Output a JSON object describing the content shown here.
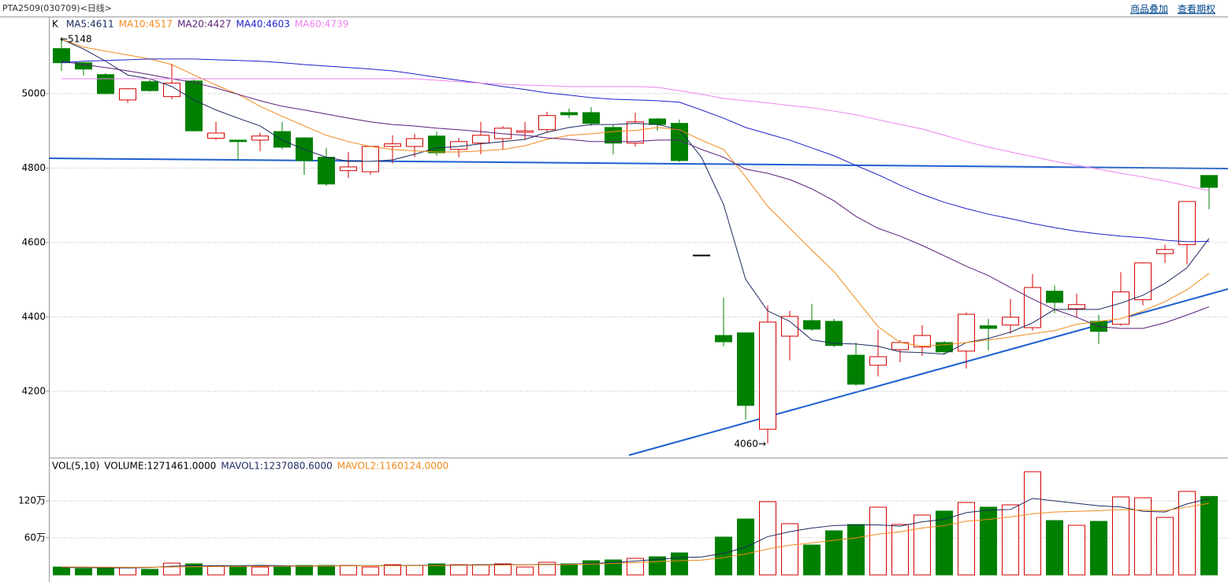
{
  "toolbar": {
    "links": [
      "商品叠加",
      "查看期权"
    ]
  },
  "chart_data": [
    {
      "type": "candlestick",
      "title": "PTA2509(030709)<日线>",
      "legend_label": "K",
      "up_color": "#d40000",
      "down_color": "#008000",
      "open": [
        5121,
        5083,
        5051,
        4983,
        5032,
        4992,
        5034,
        4880,
        4875,
        4875,
        4898,
        4881,
        4829,
        4793,
        4790,
        4858,
        4858,
        4886,
        4850,
        4867,
        4879,
        4896,
        4903,
        4949,
        4949,
        4909,
        4867,
        4932,
        4920,
        4566,
        4350,
        4357,
        4098,
        4348,
        4390,
        4388,
        4297,
        4270,
        4312,
        4319,
        4331,
        4308,
        4376,
        4378,
        4371,
        4469,
        4422,
        4388,
        4380,
        4446,
        4570,
        4594,
        4780
      ],
      "high": [
        5148,
        5085,
        5055,
        5015,
        5040,
        5080,
        5038,
        4924,
        4876,
        4895,
        4924,
        4883,
        4854,
        4843,
        4860,
        4888,
        4892,
        4898,
        4881,
        4924,
        4913,
        4924,
        4951,
        4960,
        4964,
        4917,
        4949,
        4934,
        4930,
        4566,
        4452,
        4357,
        4431,
        4416,
        4435,
        4395,
        4331,
        4365,
        4338,
        4378,
        4335,
        4412,
        4395,
        4448,
        4515,
        4484,
        4462,
        4405,
        4520,
        4547,
        4594,
        4710,
        4780
      ],
      "low": [
        5061,
        5049,
        4998,
        4975,
        5005,
        4985,
        4898,
        4875,
        4820,
        4845,
        4850,
        4782,
        4752,
        4773,
        4782,
        4812,
        4829,
        4833,
        4829,
        4837,
        4850,
        4875,
        4896,
        4934,
        4913,
        4837,
        4858,
        4900,
        4816,
        4566,
        4321,
        4124,
        4060,
        4283,
        4363,
        4319,
        4215,
        4240,
        4278,
        4295,
        4300,
        4261,
        4310,
        4355,
        4363,
        4410,
        4399,
        4327,
        4376,
        4431,
        4545,
        4541,
        4689
      ],
      "close": [
        5083,
        5066,
        5000,
        5013,
        5008,
        5028,
        4900,
        4894,
        4871,
        4886,
        4856,
        4820,
        4757,
        4803,
        4858,
        4865,
        4879,
        4841,
        4871,
        4888,
        4907,
        4900,
        4941,
        4943,
        4920,
        4867,
        4924,
        4917,
        4820,
        4566,
        4333,
        4162,
        4386,
        4401,
        4367,
        4323,
        4219,
        4293,
        4331,
        4350,
        4306,
        4407,
        4369,
        4399,
        4479,
        4439,
        4433,
        4361,
        4467,
        4545,
        4581,
        4710,
        4748
      ],
      "series": [
        {
          "name": "MA5:4611",
          "color": "#1c2a5e",
          "values": [
            5146,
            5120,
            5087,
            5050,
            5040,
            5019,
            4983,
            4956,
            4934,
            4913,
            4875,
            4850,
            4829,
            4818,
            4818,
            4822,
            4837,
            4854,
            4858,
            4865,
            4871,
            4877,
            4896,
            4909,
            4917,
            4917,
            4920,
            4917,
            4903,
            4829,
            4702,
            4501,
            4416,
            4388,
            4338,
            4329,
            4327,
            4321,
            4306,
            4304,
            4300,
            4331,
            4342,
            4359,
            4384,
            4420,
            4420,
            4420,
            4437,
            4458,
            4490,
            4532,
            4611
          ]
        },
        {
          "name": "MA10:4517",
          "color": "#f08a1c",
          "values": [
            5146,
            5125,
            5114,
            5104,
            5093,
            5078,
            5050,
            5023,
            4998,
            4966,
            4939,
            4913,
            4888,
            4871,
            4858,
            4850,
            4846,
            4843,
            4843,
            4846,
            4850,
            4860,
            4877,
            4888,
            4892,
            4898,
            4901,
            4909,
            4903,
            4875,
            4850,
            4776,
            4697,
            4638,
            4579,
            4522,
            4448,
            4374,
            4331,
            4321,
            4325,
            4331,
            4338,
            4346,
            4355,
            4363,
            4380,
            4388,
            4395,
            4416,
            4441,
            4473,
            4517
          ]
        },
        {
          "name": "MA20:4427",
          "color": "#5a1e78",
          "values": [
            5087,
            5078,
            5070,
            5061,
            5051,
            5040,
            5030,
            5015,
            4998,
            4981,
            4966,
            4956,
            4945,
            4934,
            4924,
            4917,
            4913,
            4907,
            4903,
            4898,
            4892,
            4888,
            4881,
            4877,
            4871,
            4871,
            4871,
            4875,
            4875,
            4850,
            4829,
            4797,
            4786,
            4769,
            4744,
            4712,
            4670,
            4638,
            4617,
            4592,
            4564,
            4536,
            4511,
            4479,
            4448,
            4420,
            4399,
            4374,
            4369,
            4369,
            4384,
            4405,
            4427
          ]
        },
        {
          "name": "MA40:4603",
          "color": "#2020c8",
          "values": [
            5083,
            5087,
            5089,
            5091,
            5093,
            5093,
            5093,
            5091,
            5089,
            5087,
            5083,
            5078,
            5074,
            5070,
            5066,
            5061,
            5053,
            5044,
            5036,
            5028,
            5019,
            5011,
            5002,
            4996,
            4989,
            4985,
            4983,
            4981,
            4977,
            4956,
            4934,
            4909,
            4892,
            4875,
            4854,
            4833,
            4807,
            4782,
            4754,
            4729,
            4708,
            4691,
            4676,
            4664,
            4651,
            4640,
            4630,
            4623,
            4617,
            4613,
            4606,
            4602,
            4603
          ]
        },
        {
          "name": "MA60:4739",
          "color": "#ee82ee",
          "values": [
            5040,
            5040,
            5040,
            5040,
            5040,
            5040,
            5040,
            5040,
            5040,
            5040,
            5040,
            5040,
            5040,
            5040,
            5040,
            5040,
            5040,
            5036,
            5032,
            5028,
            5025,
            5023,
            5021,
            5019,
            5019,
            5019,
            5019,
            5017,
            5008,
            4998,
            4987,
            4981,
            4975,
            4968,
            4962,
            4953,
            4943,
            4930,
            4917,
            4905,
            4888,
            4871,
            4856,
            4843,
            4831,
            4818,
            4807,
            4797,
            4786,
            4776,
            4765,
            4752,
            4739
          ]
        }
      ],
      "annotations": [
        "←5148",
        "4060→"
      ],
      "ylim": [
        4024,
        5205
      ],
      "yticks": [
        4200,
        4400,
        4600,
        4800,
        5000
      ],
      "grid": true
    },
    {
      "type": "bar",
      "title": "VOL(5,10)",
      "series": [
        {
          "name": "VOLUME:1271461.0000",
          "color": "#000000",
          "values": [
            128000,
            102000,
            115000,
            115000,
            90000,
            191000,
            179000,
            140000,
            140000,
            128000,
            140000,
            153000,
            153000,
            153000,
            128000,
            166000,
            153000,
            179000,
            166000,
            166000,
            179000,
            128000,
            204000,
            179000,
            230000,
            243000,
            268000,
            294000,
            357000,
            null,
            613000,
            906000,
            1187000,
            830000,
            485000,
            715000,
            817000,
            1098000,
            817000,
            970000,
            1034000,
            1174000,
            1098000,
            1136000,
            1672000,
            881000,
            804000,
            868000,
            1264000,
            1251000,
            932000,
            1353000,
            1271461
          ]
        },
        {
          "name": "MAVOL1:1237080.6000",
          "color": "#1c2a5e",
          "values": [
            120000,
            118000,
            116000,
            114000,
            120000,
            140000,
            150000,
            150000,
            150000,
            155000,
            150000,
            145000,
            148000,
            150000,
            150000,
            152000,
            155000,
            158000,
            160000,
            165000,
            168000,
            165000,
            170000,
            172000,
            185000,
            200000,
            225000,
            250000,
            280000,
            290000,
            350000,
            450000,
            620000,
            700000,
            760000,
            800000,
            810000,
            810000,
            790000,
            860000,
            900000,
            1010000,
            1050000,
            1060000,
            1240000,
            1200000,
            1160000,
            1120000,
            1100000,
            1030000,
            1020000,
            1150000,
            1237080.6
          ]
        },
        {
          "name": "MAVOL2:1160124.0000",
          "color": "#f08a1c",
          "values": [
            130000,
            128000,
            126000,
            125000,
            124000,
            128000,
            132000,
            135000,
            137000,
            139000,
            140000,
            142000,
            144000,
            146000,
            147000,
            148000,
            150000,
            152000,
            154000,
            156000,
            160000,
            162000,
            165000,
            168000,
            175000,
            185000,
            200000,
            215000,
            230000,
            240000,
            280000,
            340000,
            420000,
            480000,
            520000,
            560000,
            600000,
            660000,
            700000,
            760000,
            800000,
            870000,
            900000,
            940000,
            990000,
            1020000,
            1030000,
            1040000,
            1060000,
            1050000,
            1040000,
            1100000,
            1160124
          ]
        }
      ],
      "ylim": [
        0,
        1876000
      ],
      "yticks": [
        {
          "value": 600000,
          "label": "60万"
        },
        {
          "value": 1200000,
          "label": "120万"
        }
      ],
      "grid": true
    }
  ]
}
